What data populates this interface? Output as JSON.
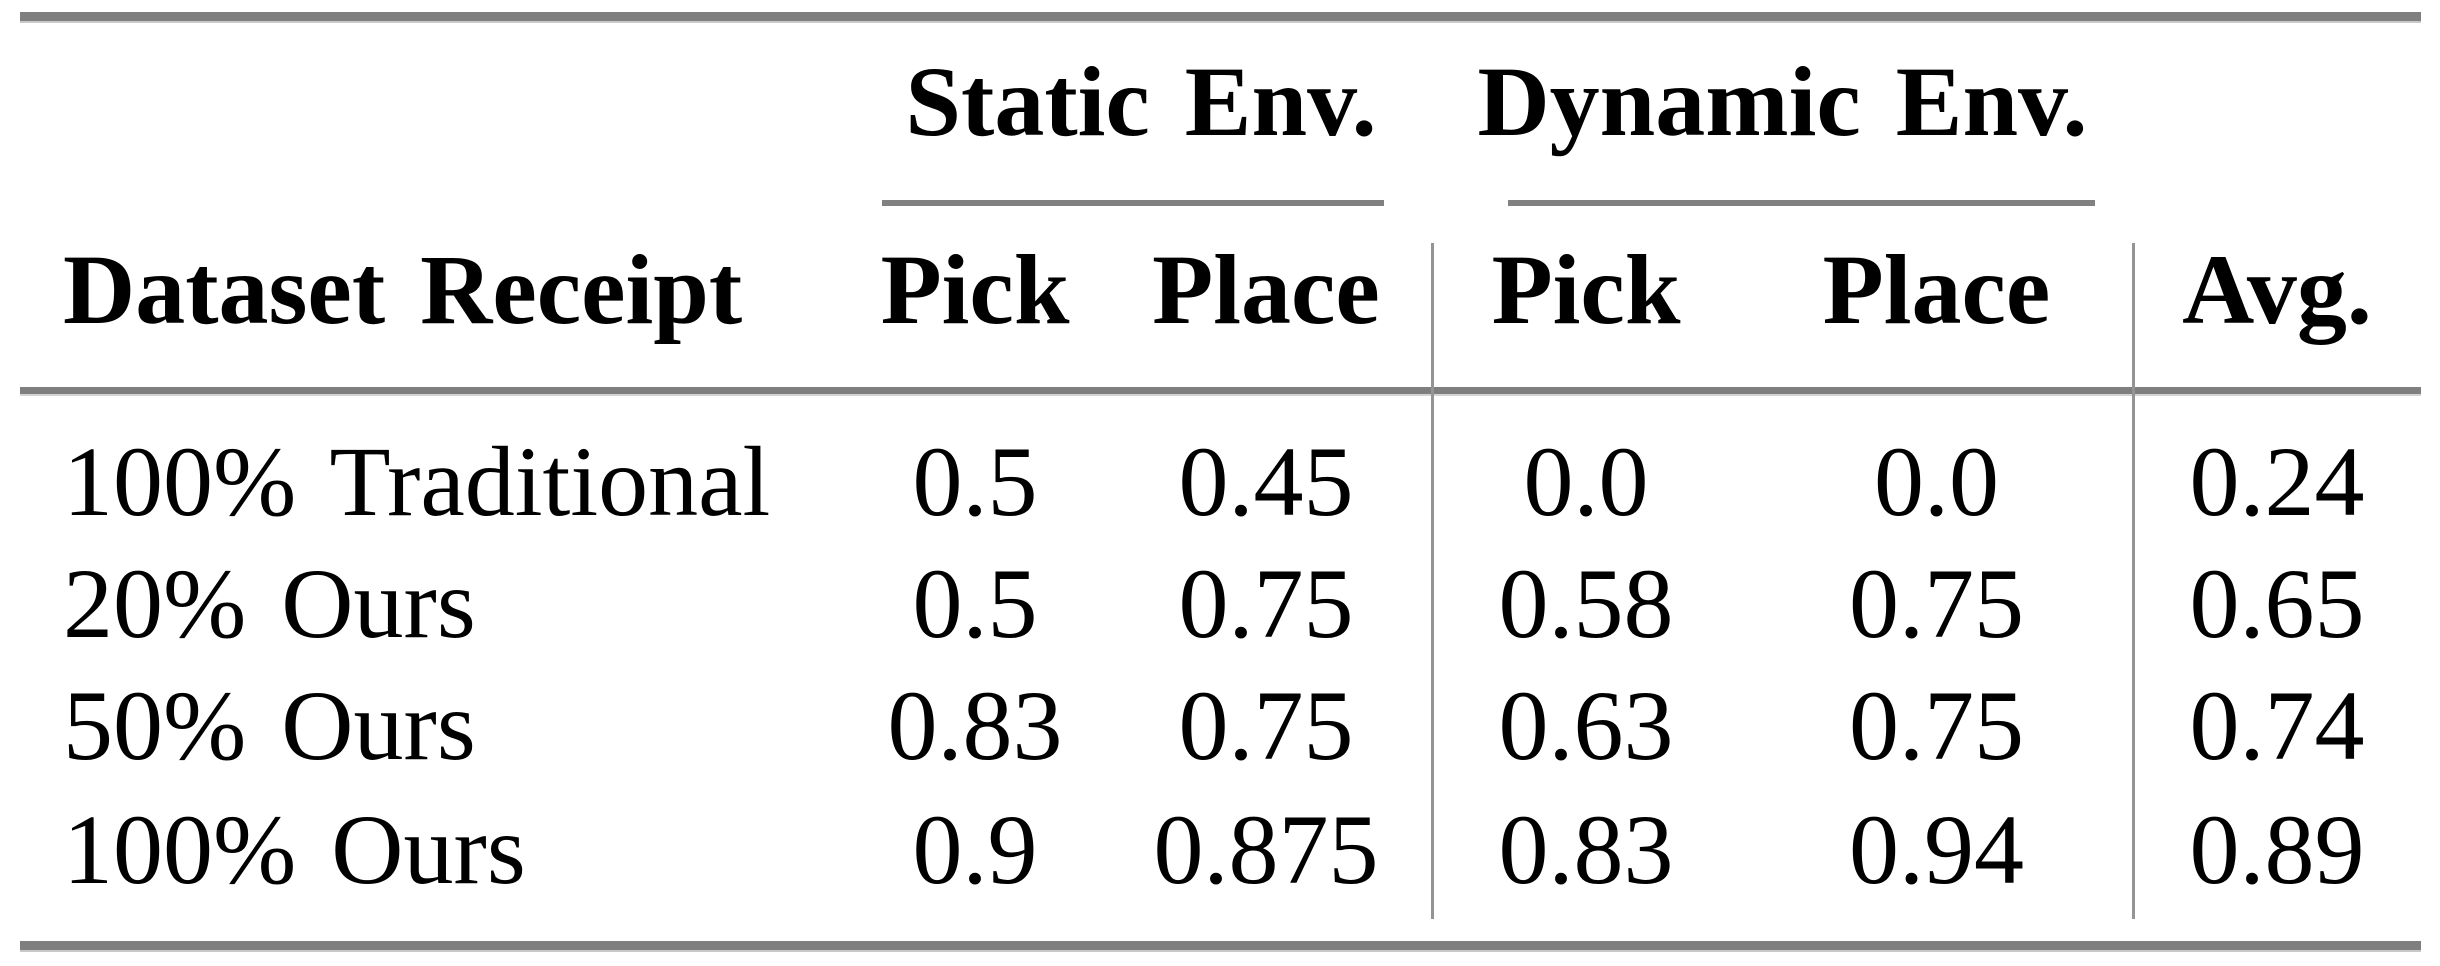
{
  "table": {
    "col_groups": [
      {
        "label": "Static Env."
      },
      {
        "label": "Dynamic Env."
      }
    ],
    "headers": {
      "row_label": "Dataset Receipt",
      "static_pick": "Pick",
      "static_place": "Place",
      "dynamic_pick": "Pick",
      "dynamic_place": "Place",
      "avg": "Avg."
    },
    "rows": [
      {
        "label": "100% Traditional",
        "values": [
          "0.5",
          "0.45",
          "0.0",
          "0.0",
          "0.24"
        ]
      },
      {
        "label": "20% Ours",
        "values": [
          "0.5",
          "0.75",
          "0.58",
          "0.75",
          "0.65"
        ]
      },
      {
        "label": "50% Ours",
        "values": [
          "0.83",
          "0.75",
          "0.63",
          "0.75",
          "0.74"
        ]
      },
      {
        "label": "100% Ours",
        "values": [
          "0.9",
          "0.875",
          "0.83",
          "0.94",
          "0.89"
        ]
      }
    ]
  },
  "chart_data": {
    "type": "table",
    "title": "",
    "column_groups": [
      "Static Env.",
      "Dynamic Env."
    ],
    "columns": [
      "Dataset Receipt",
      "Static Env. Pick",
      "Static Env. Place",
      "Dynamic Env. Pick",
      "Dynamic Env. Place",
      "Avg."
    ],
    "rows": [
      [
        "100% Traditional",
        0.5,
        0.45,
        0.0,
        0.0,
        0.24
      ],
      [
        "20% Ours",
        0.5,
        0.75,
        0.58,
        0.75,
        0.65
      ],
      [
        "50% Ours",
        0.83,
        0.75,
        0.63,
        0.75,
        0.74
      ],
      [
        "100% Ours",
        0.9,
        0.875,
        0.83,
        0.94,
        0.89
      ]
    ]
  },
  "colors": {
    "horizontal_rule": "#7f7f7f",
    "vertical_rule": "#949494",
    "text": "#000000",
    "background": "#ffffff"
  }
}
